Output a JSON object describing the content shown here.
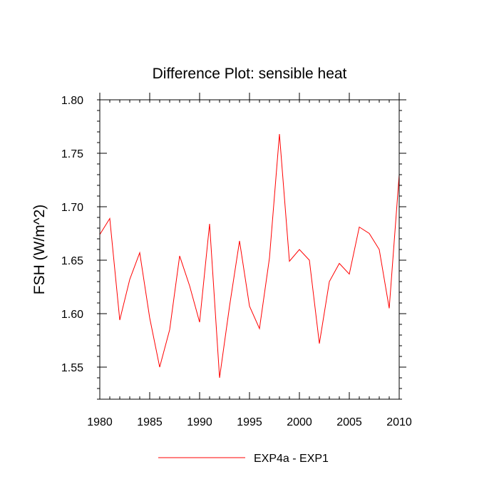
{
  "chart_data": {
    "type": "line",
    "title": "Difference Plot: sensible heat",
    "xlabel": "",
    "ylabel": "FSH  (W/m^2)",
    "xlim": [
      1980,
      2010
    ],
    "ylim": [
      1.52,
      1.8
    ],
    "x_ticks": [
      "1980",
      "1985",
      "1990",
      "1995",
      "2000",
      "2005",
      "2010"
    ],
    "y_ticks": [
      "1.55",
      "1.60",
      "1.65",
      "1.70",
      "1.75",
      "1.80"
    ],
    "grid": false,
    "legend_position": "bottom",
    "series": [
      {
        "name": "EXP4a - EXP1",
        "color": "#ff0000",
        "x": [
          1980,
          1981,
          1982,
          1983,
          1984,
          1985,
          1986,
          1987,
          1988,
          1989,
          1990,
          1991,
          1992,
          1993,
          1994,
          1995,
          1996,
          1997,
          1998,
          1999,
          2000,
          2001,
          2002,
          2003,
          2004,
          2005,
          2006,
          2007,
          2008,
          2009,
          2010
        ],
        "y": [
          1.674,
          1.689,
          1.594,
          1.632,
          1.657,
          1.596,
          1.55,
          1.585,
          1.654,
          1.626,
          1.592,
          1.684,
          1.54,
          1.607,
          1.668,
          1.607,
          1.586,
          1.652,
          1.768,
          1.649,
          1.66,
          1.65,
          1.572,
          1.63,
          1.647,
          1.637,
          1.681,
          1.675,
          1.66,
          1.605,
          1.73
        ]
      }
    ]
  }
}
